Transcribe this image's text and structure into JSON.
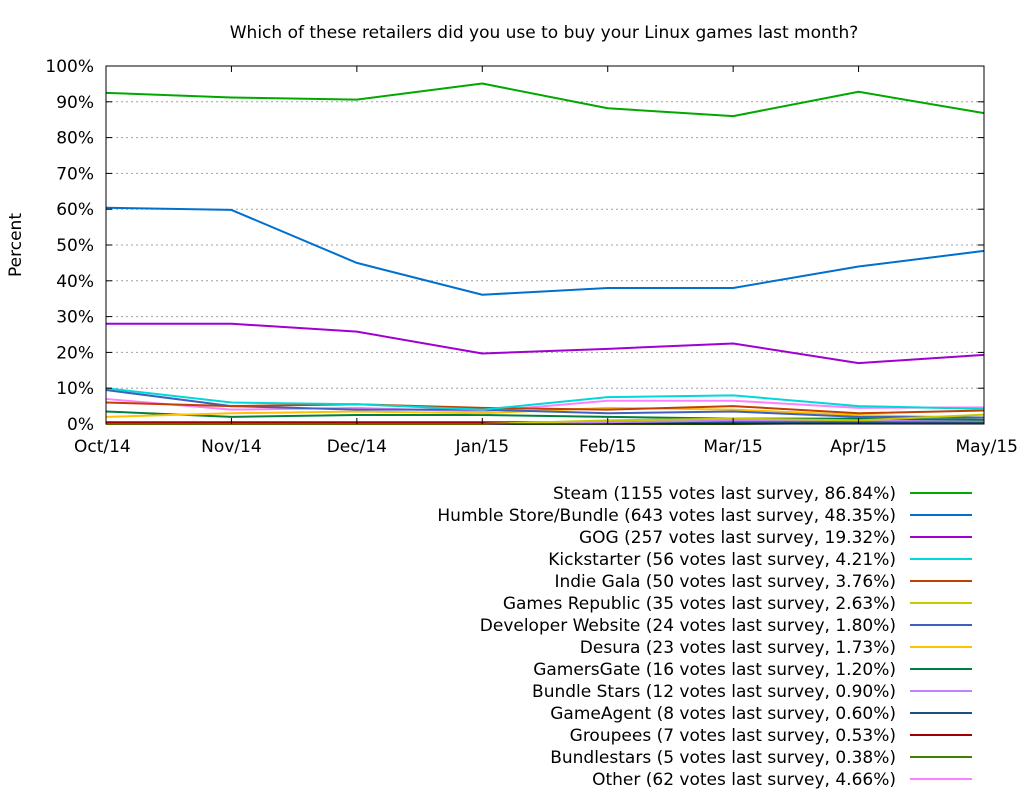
{
  "chart_data": {
    "type": "line",
    "title": "Which of these retailers did you use to buy your Linux games last month?",
    "ylabel": "Percent",
    "xlabel": "",
    "categories": [
      "Oct/14",
      "Nov/14",
      "Dec/14",
      "Jan/15",
      "Feb/15",
      "Mar/15",
      "Apr/15",
      "May/15"
    ],
    "ylim": [
      0,
      100
    ],
    "yticks": [
      "0%",
      "10%",
      "20%",
      "30%",
      "40%",
      "50%",
      "60%",
      "70%",
      "80%",
      "90%",
      "100%"
    ],
    "grid": true,
    "legend_position": "bottom-right",
    "series": [
      {
        "name": "Steam (1155 votes last survey, 86.84%)",
        "color": "#00a800",
        "values": [
          92.5,
          91.2,
          90.6,
          95.1,
          88.2,
          86.0,
          92.8,
          86.84
        ]
      },
      {
        "name": "Humble Store/Bundle (643 votes last survey, 48.35%)",
        "color": "#0070d0",
        "values": [
          60.4,
          59.8,
          45.0,
          36.1,
          38.0,
          38.0,
          44.0,
          48.35
        ]
      },
      {
        "name": "GOG (257 votes last survey, 19.32%)",
        "color": "#a000d0",
        "values": [
          28.0,
          28.0,
          25.8,
          19.7,
          21.0,
          22.5,
          17.0,
          19.32
        ]
      },
      {
        "name": "Kickstarter (56 votes last survey, 4.21%)",
        "color": "#00d8d8",
        "values": [
          10.0,
          6.0,
          5.5,
          4.0,
          7.5,
          8.0,
          5.0,
          4.21
        ]
      },
      {
        "name": "Indie Gala (50 votes last survey, 3.76%)",
        "color": "#c04000",
        "values": [
          6.0,
          5.0,
          5.5,
          4.5,
          4.0,
          5.0,
          3.0,
          3.76
        ]
      },
      {
        "name": "Games Republic (35 votes last survey, 2.63%)",
        "color": "#c8c800",
        "values": [
          0.0,
          0.0,
          0.0,
          0.0,
          1.0,
          1.5,
          1.0,
          2.63
        ]
      },
      {
        "name": "Developer Website (24 votes last survey, 1.80%)",
        "color": "#4060c0",
        "values": [
          9.5,
          5.0,
          4.0,
          4.0,
          3.0,
          3.5,
          2.0,
          1.8
        ]
      },
      {
        "name": "Desura (23 votes last survey, 1.73%)",
        "color": "#ffc000",
        "values": [
          2.0,
          3.0,
          3.5,
          3.0,
          4.5,
          4.0,
          2.5,
          1.73
        ]
      },
      {
        "name": "GamersGate (16 votes last survey, 1.20%)",
        "color": "#008040",
        "values": [
          3.5,
          2.0,
          2.5,
          2.5,
          2.0,
          1.5,
          1.5,
          1.2
        ]
      },
      {
        "name": "Bundle Stars (12 votes last survey, 0.90%)",
        "color": "#c080ff",
        "values": [
          0.0,
          0.0,
          0.0,
          0.0,
          0.5,
          1.0,
          1.0,
          0.9
        ]
      },
      {
        "name": "GameAgent (8 votes last survey, 0.60%)",
        "color": "#205080",
        "values": [
          0.0,
          0.0,
          0.0,
          0.0,
          0.3,
          0.5,
          0.5,
          0.6
        ]
      },
      {
        "name": "Groupees (7 votes last survey, 0.53%)",
        "color": "#a00000",
        "values": [
          0.5,
          0.5,
          0.5,
          0.5,
          0.5,
          0.5,
          0.5,
          0.53
        ]
      },
      {
        "name": "Bundlestars (5 votes last survey, 0.38%)",
        "color": "#408000",
        "values": [
          0.0,
          0.0,
          0.0,
          0.0,
          0.0,
          0.0,
          0.3,
          0.38
        ]
      },
      {
        "name": "Other (62 votes last survey, 4.66%)",
        "color": "#ff80ff",
        "values": [
          7.0,
          4.0,
          4.5,
          3.5,
          6.5,
          6.5,
          4.5,
          4.66
        ]
      }
    ]
  }
}
